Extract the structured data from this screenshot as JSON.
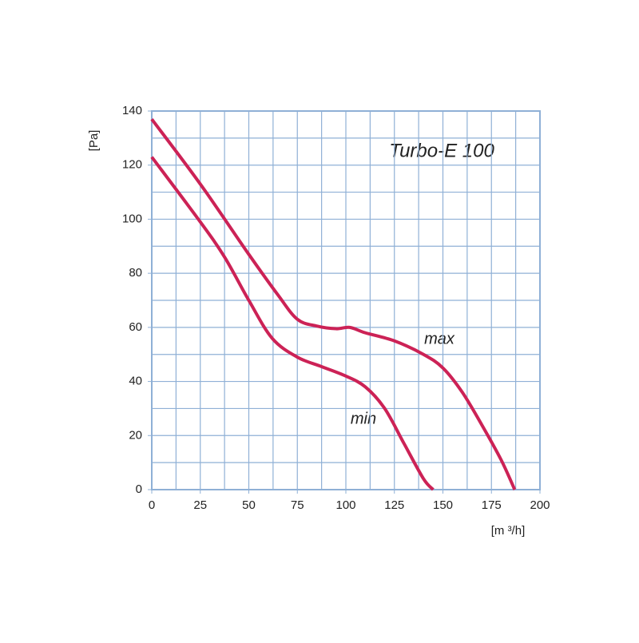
{
  "chart_data": {
    "type": "line",
    "title": "Turbo-E 100",
    "x_label": "[m ³/h]",
    "y_label": "[Pa]",
    "xlim": [
      0,
      200
    ],
    "ylim": [
      0,
      140
    ],
    "xticks": [
      0,
      25,
      50,
      75,
      100,
      125,
      150,
      175,
      200
    ],
    "yticks": [
      0,
      20,
      40,
      60,
      80,
      100,
      120,
      140
    ],
    "x_gridlines": [
      0,
      12.5,
      25,
      37.5,
      50,
      62.5,
      75,
      87.5,
      100,
      112.5,
      125,
      137.5,
      150,
      162.5,
      175,
      187.5,
      200
    ],
    "y_gridlines": [
      0,
      10,
      20,
      30,
      40,
      50,
      60,
      70,
      80,
      90,
      100,
      110,
      120,
      130,
      140
    ],
    "grid": true,
    "grid_color": "#8fb0d6",
    "series": [
      {
        "name": "max",
        "color": "#cc2256",
        "x": [
          0,
          25,
          50,
          65,
          75,
          85,
          95,
          102,
          110,
          125,
          140,
          150,
          160,
          170,
          180,
          187
        ],
        "values": [
          137,
          113,
          87,
          72,
          63,
          60.5,
          59.5,
          60,
          58,
          55,
          50,
          45,
          36,
          24,
          11,
          0
        ]
      },
      {
        "name": "min",
        "color": "#cc2256",
        "x": [
          0,
          25,
          37.5,
          50,
          62,
          75,
          87.5,
          100,
          110,
          120,
          130,
          140,
          145
        ],
        "values": [
          123,
          99,
          86,
          70,
          56,
          49,
          45.5,
          42,
          38,
          30,
          17,
          4,
          0
        ]
      }
    ]
  }
}
